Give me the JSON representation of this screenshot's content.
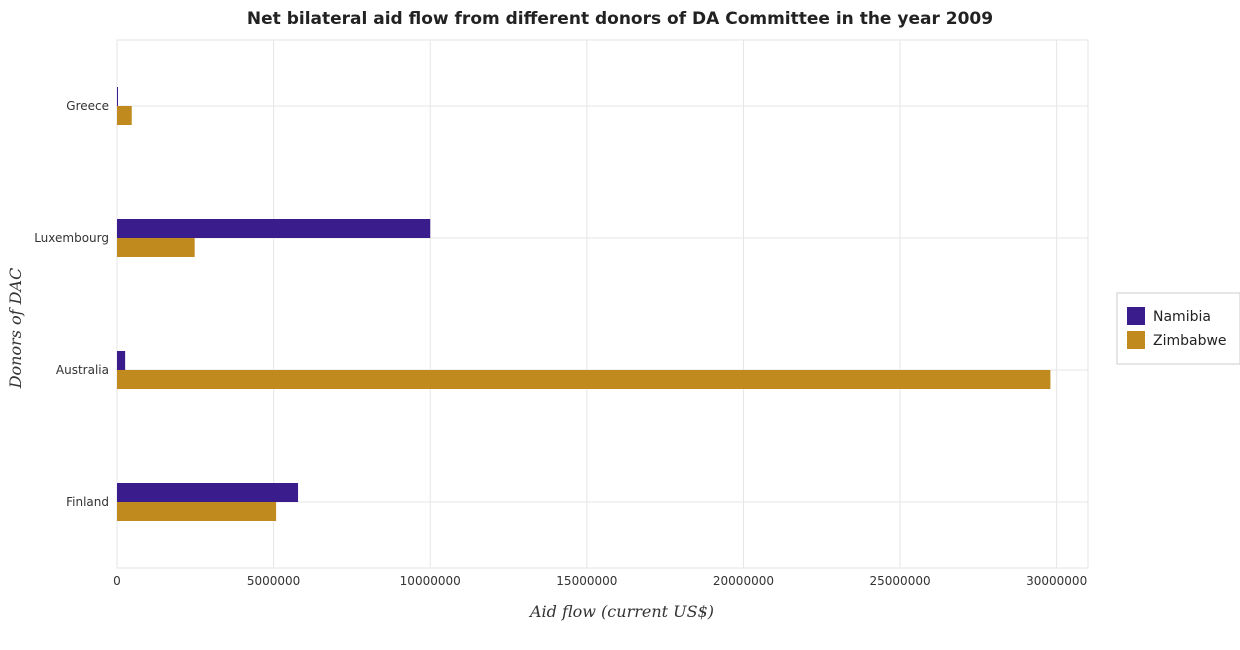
{
  "chart_data": {
    "type": "bar",
    "orientation": "horizontal",
    "title": "Net bilateral aid flow from different donors of DA Committee in the year 2009",
    "xlabel": "Aid flow (current US$)",
    "ylabel": "Donors of DAC",
    "categories": [
      "Greece",
      "Luxembourg",
      "Australia",
      "Finland"
    ],
    "series": [
      {
        "name": "Namibia",
        "color": "#3b1c8c",
        "values": [
          20000,
          10000000,
          260000,
          5780000
        ]
      },
      {
        "name": "Zimbabwe",
        "color": "#c08a1e",
        "values": [
          470000,
          2480000,
          29800000,
          5080000
        ]
      }
    ],
    "xlim": [
      0,
      31000000
    ],
    "xticks": [
      0,
      5000000,
      10000000,
      15000000,
      20000000,
      25000000,
      30000000
    ],
    "xtick_labels": [
      "0",
      "5000000",
      "10000000",
      "15000000",
      "20000000",
      "25000000",
      "30000000"
    ],
    "grid": true,
    "legend_position": "right"
  }
}
